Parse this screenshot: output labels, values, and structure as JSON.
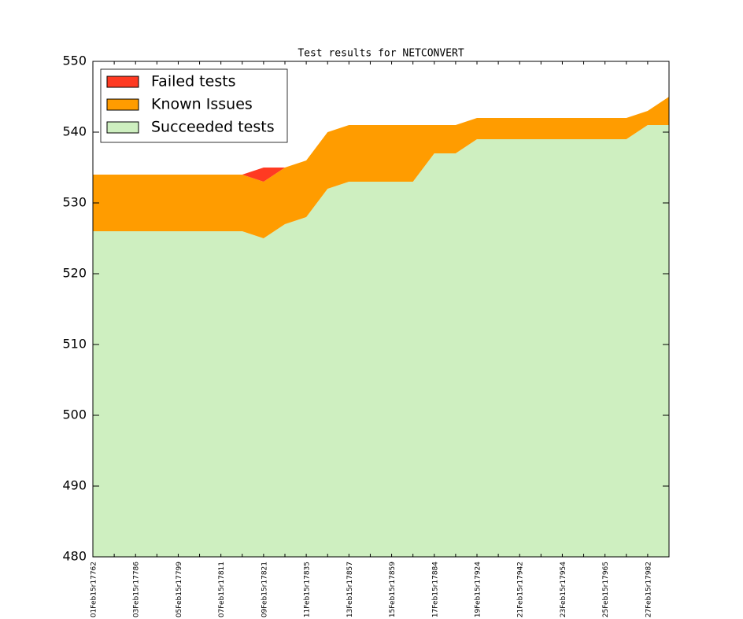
{
  "chart_data": {
    "type": "stacked_area",
    "title": "Test results for NETCONVERT",
    "categories": [
      "01Feb15r17762",
      null,
      "03Feb15r17786",
      null,
      "05Feb15r17799",
      null,
      "07Feb15r17811",
      null,
      "09Feb15r17821",
      null,
      "11Feb15r17835",
      null,
      "13Feb15r17857",
      null,
      "15Feb15r17859",
      null,
      "17Feb15r17884",
      null,
      "19Feb15r17924",
      null,
      "21Feb15r17942",
      null,
      "23Feb15r17954",
      null,
      "25Feb15r17965",
      null,
      "27Feb15r17982",
      null
    ],
    "series": [
      {
        "name": "Failed tests",
        "color": "#ff3a22",
        "values": [
          0,
          0,
          0,
          0,
          0,
          0,
          0,
          0,
          2,
          0,
          0,
          0,
          0,
          0,
          0,
          0,
          0,
          0,
          0,
          0,
          0,
          0,
          0,
          0,
          0,
          0,
          0,
          0
        ]
      },
      {
        "name": "Known Issues",
        "color": "#ff9c00",
        "values": [
          8,
          8,
          8,
          8,
          8,
          8,
          8,
          8,
          8,
          8,
          8,
          8,
          8,
          8,
          8,
          8,
          4,
          4,
          3,
          3,
          3,
          3,
          3,
          3,
          3,
          3,
          2,
          4
        ]
      },
      {
        "name": "Succeeded tests",
        "color": "#ceefc0",
        "values": [
          526,
          526,
          526,
          526,
          526,
          526,
          526,
          526,
          525,
          527,
          528,
          532,
          533,
          533,
          533,
          533,
          537,
          537,
          539,
          539,
          539,
          539,
          539,
          539,
          539,
          539,
          541,
          541
        ]
      }
    ],
    "ylim": [
      480,
      550
    ],
    "yticks": [
      480,
      490,
      500,
      510,
      520,
      530,
      540,
      550
    ],
    "legend": "upper left"
  }
}
